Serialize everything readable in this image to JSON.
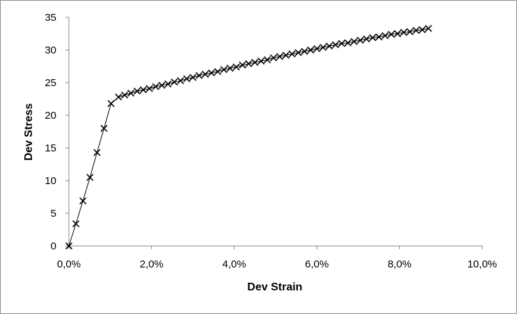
{
  "chart_data": {
    "type": "scatter",
    "title": "",
    "xlabel": "Dev Strain",
    "ylabel": "Dev Stress",
    "xlim": [
      0,
      10
    ],
    "ylim": [
      0,
      35
    ],
    "x_ticks": [
      "0,0%",
      "2,0%",
      "4,0%",
      "6,0%",
      "8,0%",
      "10,0%"
    ],
    "y_ticks": [
      "0",
      "5",
      "10",
      "15",
      "20",
      "25",
      "30",
      "35"
    ],
    "grid": false,
    "legend": "none",
    "marker": "x",
    "line": "connected",
    "colors": {
      "series": "#000000",
      "axis": "#868686",
      "border": "#8c8c8c"
    },
    "series": [
      {
        "x_unit": "percent",
        "x": [
          0,
          0.17,
          0.34,
          0.51,
          0.68,
          0.85,
          1.02,
          1.2,
          1.35,
          1.5,
          1.65,
          1.8,
          1.95,
          2.1,
          2.25,
          2.4,
          2.55,
          2.7,
          2.85,
          3.0,
          3.15,
          3.3,
          3.45,
          3.6,
          3.75,
          3.9,
          4.05,
          4.2,
          4.35,
          4.5,
          4.65,
          4.8,
          4.95,
          5.1,
          5.25,
          5.4,
          5.55,
          5.7,
          5.85,
          6.0,
          6.15,
          6.3,
          6.45,
          6.6,
          6.75,
          6.9,
          7.05,
          7.2,
          7.35,
          7.5,
          7.65,
          7.8,
          7.95,
          8.1,
          8.25,
          8.4,
          8.55,
          8.7
        ],
        "y": [
          0,
          3.4,
          6.9,
          10.5,
          14.3,
          18.0,
          21.8,
          22.8,
          23.1,
          23.4,
          23.7,
          23.9,
          24.1,
          24.4,
          24.6,
          24.8,
          25.1,
          25.3,
          25.6,
          25.8,
          26.1,
          26.3,
          26.5,
          26.7,
          27.0,
          27.2,
          27.4,
          27.7,
          27.9,
          28.1,
          28.3,
          28.5,
          28.8,
          29.0,
          29.2,
          29.4,
          29.6,
          29.8,
          30.0,
          30.2,
          30.4,
          30.6,
          30.8,
          31.0,
          31.1,
          31.3,
          31.5,
          31.7,
          31.9,
          32.0,
          32.2,
          32.4,
          32.5,
          32.7,
          32.8,
          33.0,
          33.1,
          33.3
        ]
      }
    ]
  }
}
